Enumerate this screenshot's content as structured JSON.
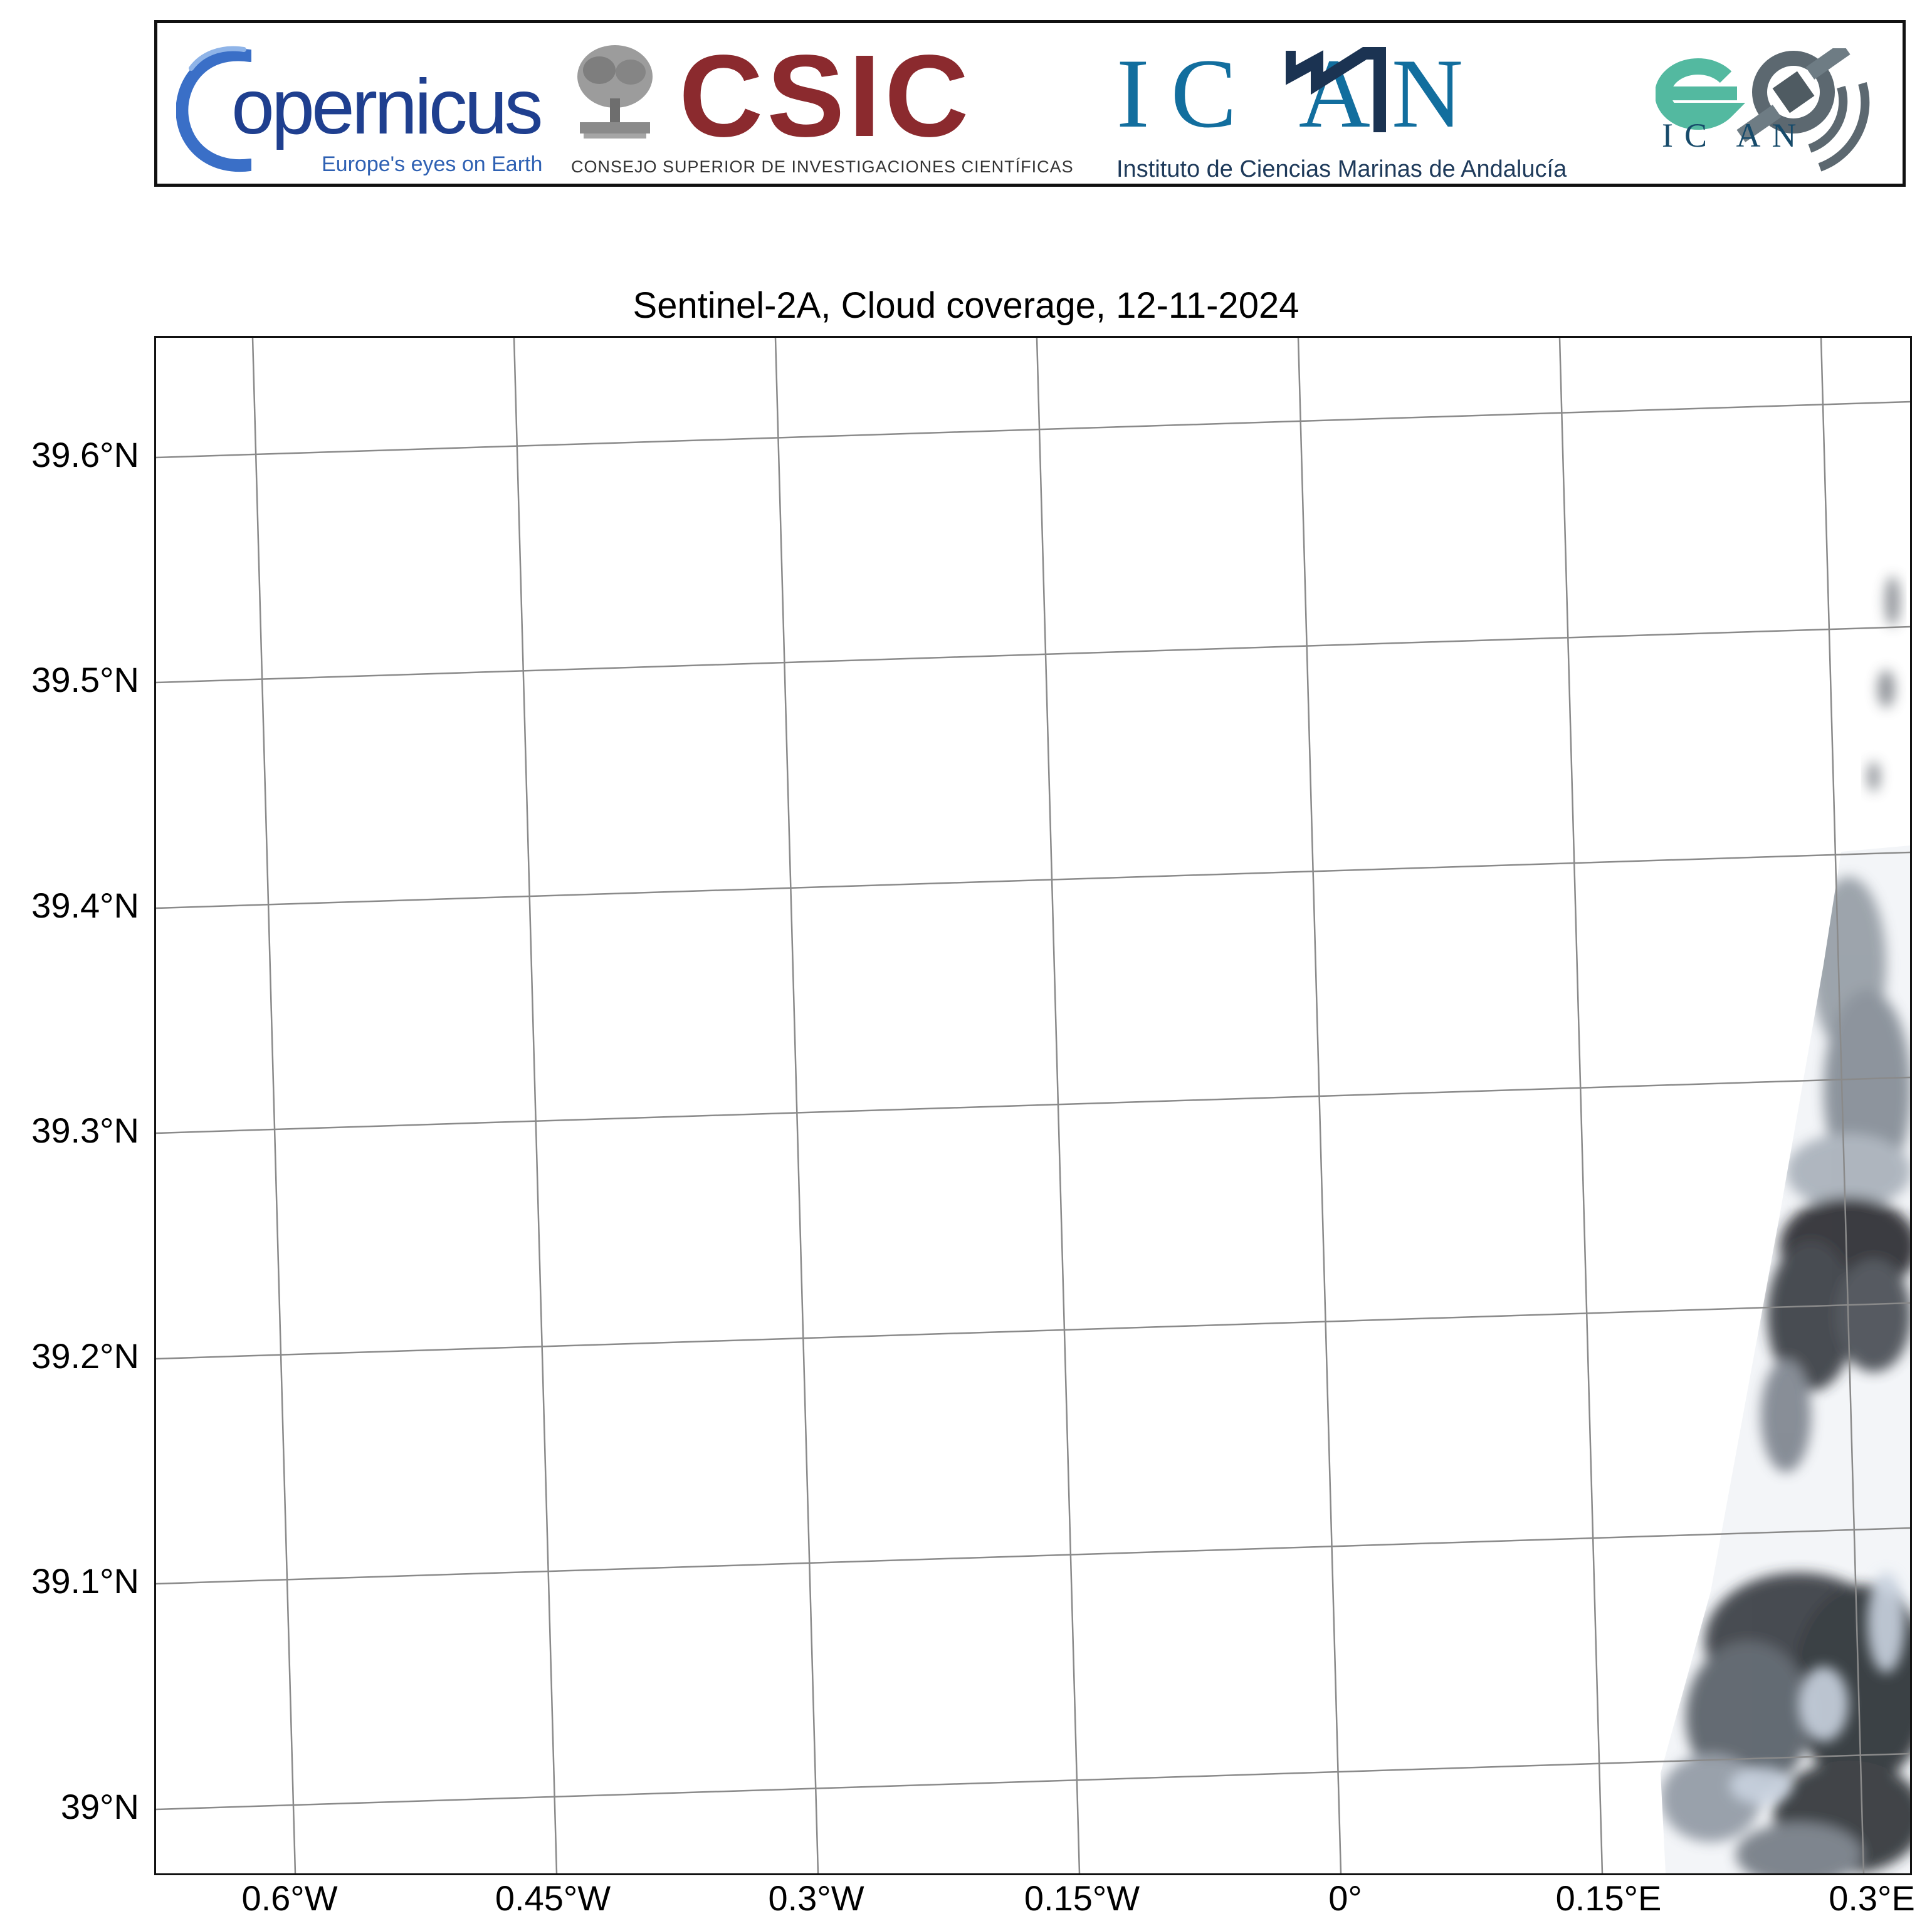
{
  "logos": {
    "copernicus": {
      "name": "opernicus",
      "tagline": "Europe's eyes on Earth"
    },
    "csic": {
      "name": "CSIC",
      "tagline": "CONSEJO SUPERIOR DE INVESTIGACIONES CIENTÍFICAS"
    },
    "icman": {
      "name": "IC AN",
      "tagline": "Instituto de Ciencias Marinas de Andalucía"
    },
    "icman_eo": {
      "name": "IC AN"
    }
  },
  "map": {
    "title": "Sentinel-2A, Cloud coverage, 12-11-2024",
    "lat_ticks": [
      "39.6°N",
      "39.5°N",
      "39.4°N",
      "39.3°N",
      "39.2°N",
      "39.1°N",
      "39°N"
    ],
    "lon_ticks": [
      "0.6°W",
      "0.45°W",
      "0.3°W",
      "0.15°W",
      "0°",
      "0.15°E",
      "0.3°E"
    ],
    "colors": {
      "grid": "#8a8a8a",
      "frame": "#111111",
      "cloud_dark": "#1c1f24",
      "cloud_light": "#c9d3e0"
    }
  }
}
